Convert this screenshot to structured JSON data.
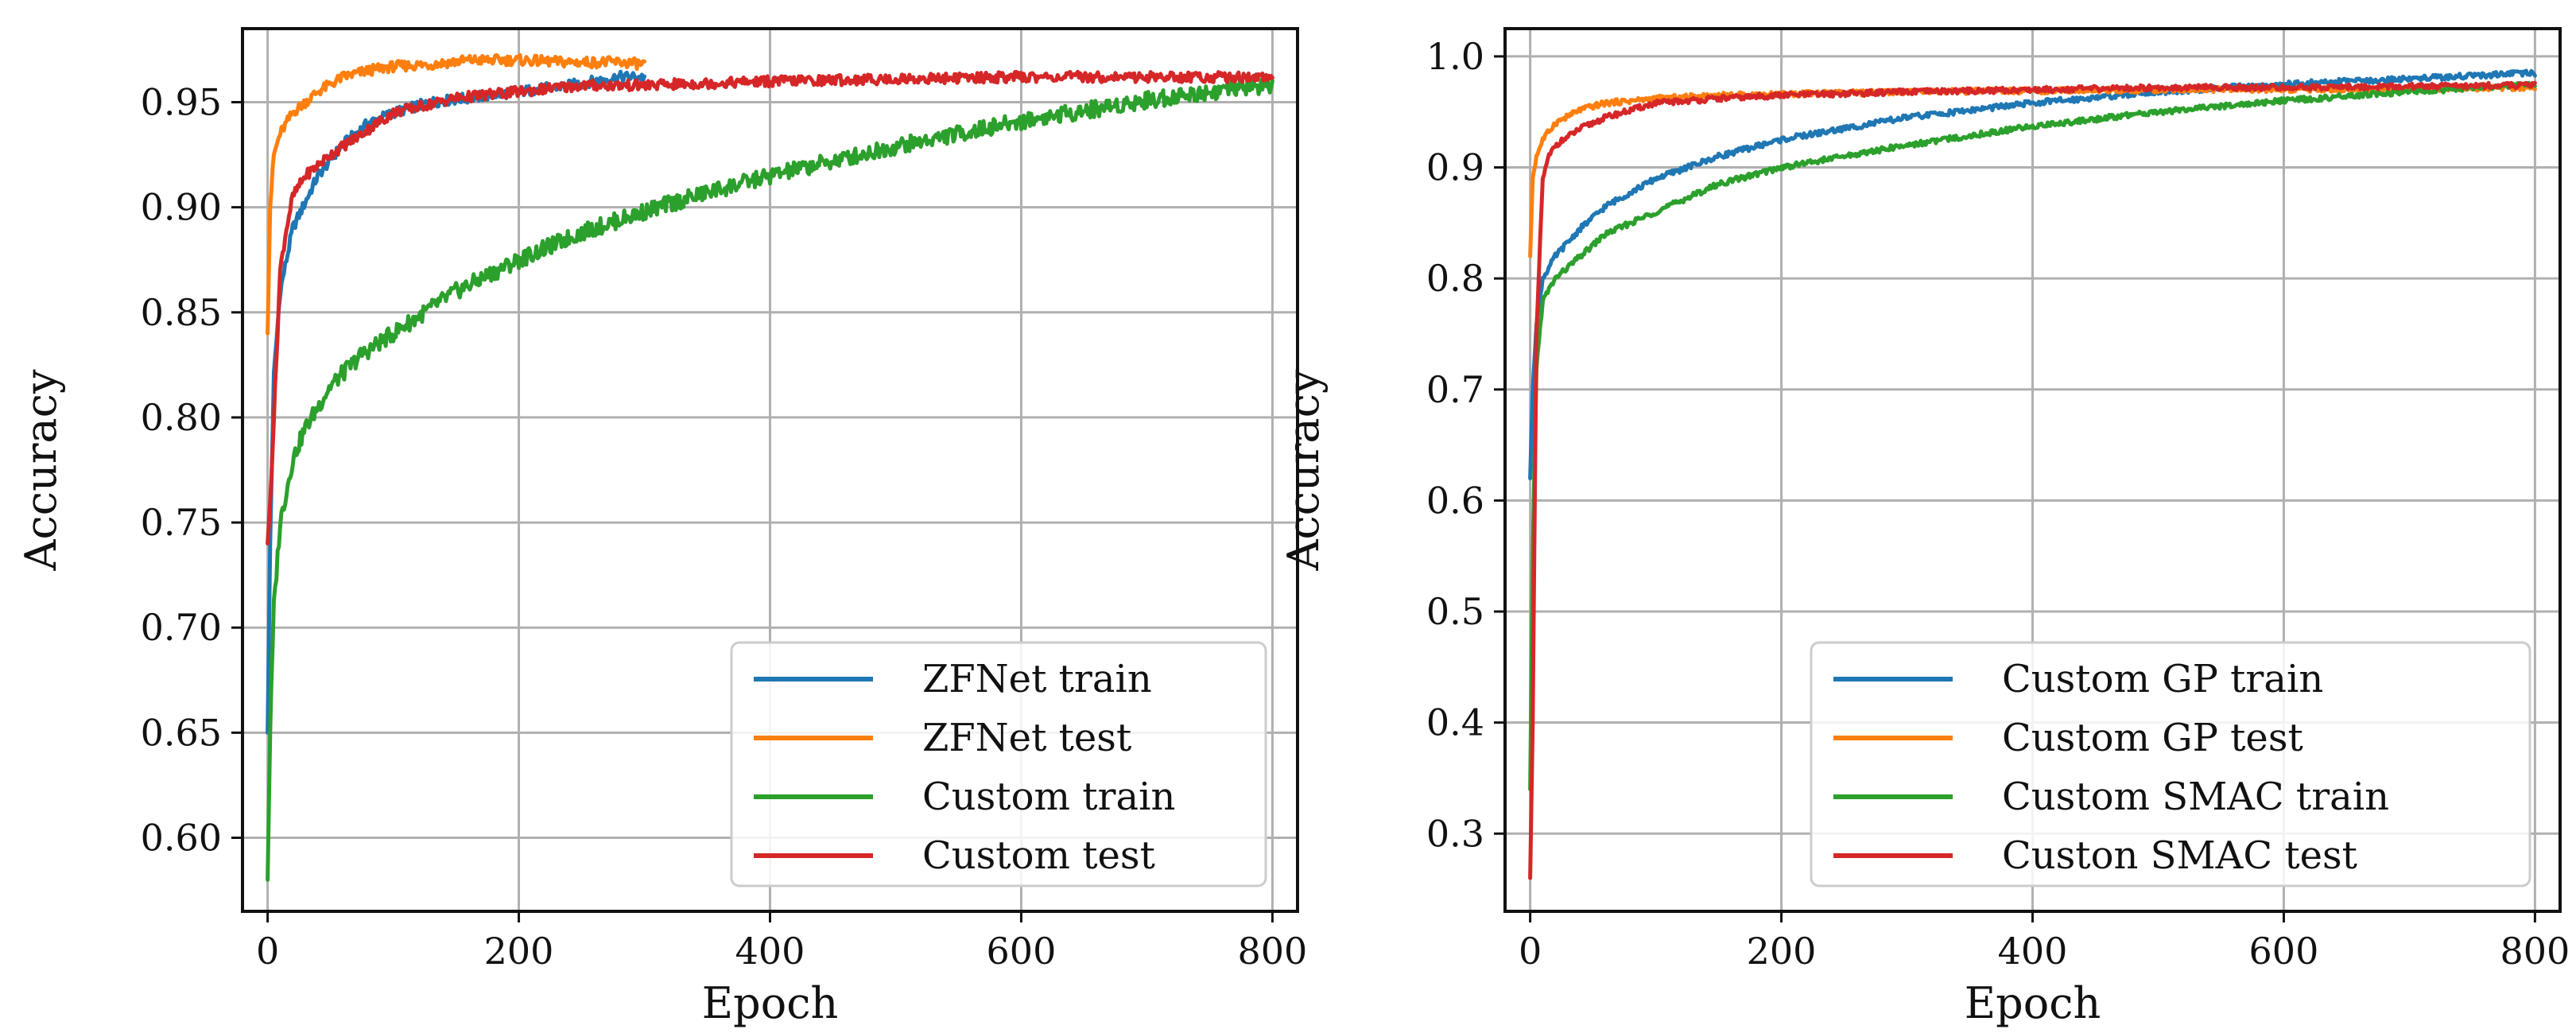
{
  "chart_data": [
    {
      "type": "line",
      "title": "",
      "xlabel": "Epoch",
      "ylabel": "Accuracy",
      "xlim": [
        -20,
        820
      ],
      "ylim": [
        0.565,
        0.985
      ],
      "xticks": [
        0,
        200,
        400,
        600,
        800
      ],
      "xtick_labels": [
        "0",
        "200",
        "400",
        "600",
        "800"
      ],
      "yticks": [
        0.6,
        0.65,
        0.7,
        0.75,
        0.8,
        0.85,
        0.9,
        0.95
      ],
      "ytick_labels": [
        "0.60",
        "0.65",
        "0.70",
        "0.75",
        "0.80",
        "0.85",
        "0.90",
        "0.95"
      ],
      "grid": true,
      "legend_position": "lower-right",
      "series": [
        {
          "name": "ZFNet train",
          "color": "#1f77b4",
          "x": [
            0,
            2,
            5,
            10,
            20,
            40,
            60,
            80,
            100,
            130,
            160,
            200,
            240,
            280,
            300
          ],
          "y": [
            0.65,
            0.74,
            0.82,
            0.86,
            0.89,
            0.915,
            0.93,
            0.94,
            0.945,
            0.95,
            0.952,
            0.955,
            0.958,
            0.962,
            0.962
          ]
        },
        {
          "name": "ZFNet test",
          "color": "#ff7f0e",
          "x": [
            0,
            2,
            5,
            10,
            20,
            40,
            60,
            80,
            100,
            130,
            160,
            200,
            240,
            280,
            300
          ],
          "y": [
            0.84,
            0.9,
            0.925,
            0.935,
            0.945,
            0.955,
            0.962,
            0.965,
            0.967,
            0.968,
            0.97,
            0.97,
            0.969,
            0.969,
            0.968
          ]
        },
        {
          "name": "Custom train",
          "color": "#2ca02c",
          "x": [
            0,
            2,
            5,
            10,
            20,
            30,
            50,
            75,
            100,
            150,
            200,
            250,
            300,
            350,
            400,
            450,
            500,
            550,
            600,
            650,
            700,
            750,
            800
          ],
          "y": [
            0.58,
            0.65,
            0.71,
            0.75,
            0.78,
            0.795,
            0.815,
            0.83,
            0.84,
            0.86,
            0.875,
            0.888,
            0.898,
            0.907,
            0.915,
            0.922,
            0.929,
            0.935,
            0.941,
            0.946,
            0.951,
            0.955,
            0.958
          ]
        },
        {
          "name": "Custom test",
          "color": "#d62728",
          "x": [
            0,
            2,
            5,
            10,
            15,
            20,
            30,
            50,
            75,
            100,
            150,
            200,
            250,
            300,
            400,
            500,
            600,
            700,
            800
          ],
          "y": [
            0.74,
            0.76,
            0.8,
            0.87,
            0.89,
            0.905,
            0.915,
            0.925,
            0.935,
            0.945,
            0.952,
            0.955,
            0.958,
            0.958,
            0.96,
            0.961,
            0.962,
            0.962,
            0.962
          ]
        }
      ]
    },
    {
      "type": "line",
      "title": "",
      "xlabel": "Epoch",
      "ylabel": "Accuracy",
      "xlim": [
        -20,
        820
      ],
      "ylim": [
        0.23,
        1.025
      ],
      "xticks": [
        0,
        200,
        400,
        600,
        800
      ],
      "xtick_labels": [
        "0",
        "200",
        "400",
        "600",
        "800"
      ],
      "yticks": [
        0.3,
        0.4,
        0.5,
        0.6,
        0.7,
        0.8,
        0.9,
        1.0
      ],
      "ytick_labels": [
        "0.3",
        "0.4",
        "0.5",
        "0.6",
        "0.7",
        "0.8",
        "0.9",
        "1.0"
      ],
      "grid": true,
      "legend_position": "lower-right",
      "series": [
        {
          "name": "Custom GP train",
          "color": "#1f77b4",
          "x": [
            0,
            2,
            5,
            10,
            20,
            40,
            60,
            100,
            150,
            200,
            300,
            400,
            500,
            600,
            700,
            800
          ],
          "y": [
            0.62,
            0.7,
            0.76,
            0.8,
            0.82,
            0.845,
            0.865,
            0.89,
            0.91,
            0.925,
            0.945,
            0.958,
            0.968,
            0.975,
            0.98,
            0.985
          ]
        },
        {
          "name": "Custom GP test",
          "color": "#ff7f0e",
          "x": [
            0,
            2,
            5,
            10,
            20,
            40,
            60,
            100,
            150,
            200,
            300,
            400,
            500,
            600,
            700,
            800
          ],
          "y": [
            0.82,
            0.89,
            0.91,
            0.925,
            0.94,
            0.952,
            0.958,
            0.962,
            0.965,
            0.966,
            0.968,
            0.969,
            0.97,
            0.97,
            0.971,
            0.972
          ]
        },
        {
          "name": "Custom SMAC train",
          "color": "#2ca02c",
          "x": [
            0,
            2,
            5,
            10,
            20,
            40,
            60,
            100,
            150,
            200,
            300,
            400,
            500,
            600,
            700,
            800
          ],
          "y": [
            0.34,
            0.55,
            0.72,
            0.78,
            0.8,
            0.82,
            0.84,
            0.86,
            0.885,
            0.9,
            0.92,
            0.937,
            0.95,
            0.96,
            0.968,
            0.975
          ]
        },
        {
          "name": "Custon SMAC test",
          "color": "#d62728",
          "x": [
            0,
            2,
            5,
            10,
            15,
            20,
            40,
            60,
            100,
            150,
            200,
            300,
            400,
            500,
            600,
            700,
            800
          ],
          "y": [
            0.26,
            0.4,
            0.75,
            0.89,
            0.91,
            0.92,
            0.935,
            0.945,
            0.958,
            0.962,
            0.965,
            0.968,
            0.97,
            0.972,
            0.972,
            0.973,
            0.974
          ]
        }
      ]
    }
  ]
}
